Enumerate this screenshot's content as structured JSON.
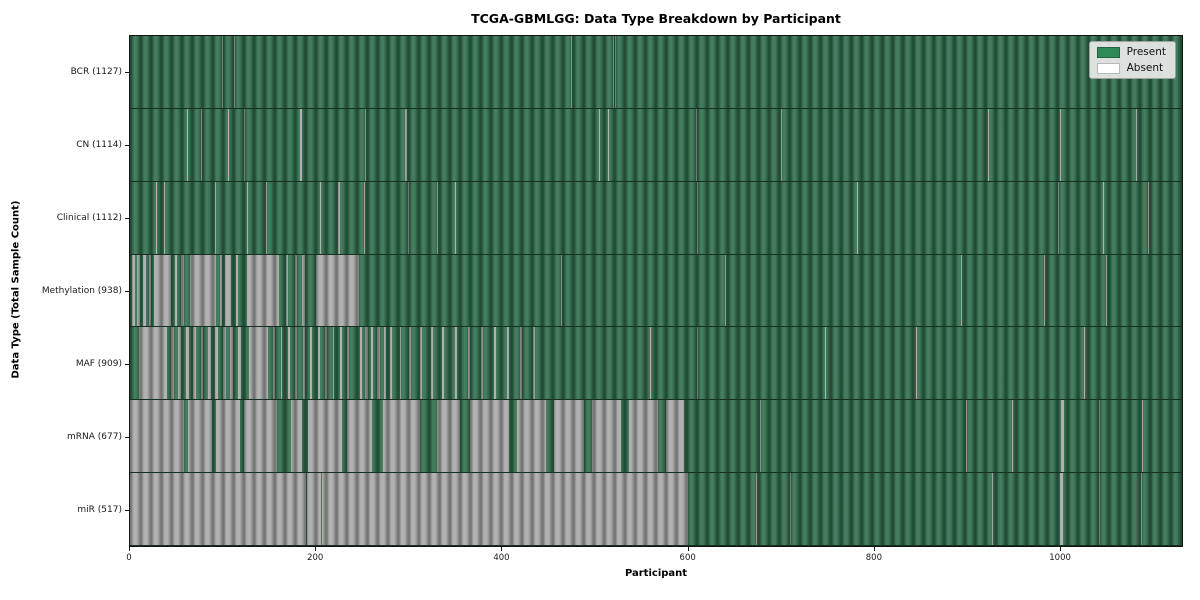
{
  "colors": {
    "present_bar": "#2f6c4b",
    "absent_bar": "#a8a8a8",
    "legend_present": "#2e8b57",
    "legend_absent": "#ffffff",
    "figure_background": "#ffffff"
  },
  "legend": {
    "items": [
      {
        "label": "Present",
        "color": "#2e8b57"
      },
      {
        "label": "Absent",
        "color": "#ffffff"
      }
    ]
  },
  "chart_data": {
    "type": "heatmap",
    "title": "TCGA-GBMLGG: Data Type Breakdown by Participant",
    "xlabel": "Participant",
    "ylabel": "Data Type (Total Sample Count)",
    "x_range": [
      0,
      1132
    ],
    "x_ticks": [
      0,
      200,
      400,
      600,
      800,
      1000
    ],
    "grid": false,
    "legend_position": "upper right",
    "value_encoding": {
      "present": "green bar",
      "absent": "white/gray bar"
    },
    "rows": [
      {
        "name": "BCR",
        "label": "BCR (1127)",
        "count": 1127,
        "absent_runs": [
          [
            99,
            100
          ],
          [
            112,
            113
          ],
          [
            474,
            475
          ],
          [
            520,
            521
          ],
          [
            522,
            523
          ]
        ]
      },
      {
        "name": "CN",
        "label": "CN (1114)",
        "count": 1114,
        "absent_runs": [
          [
            61,
            62
          ],
          [
            76,
            77
          ],
          [
            105,
            106
          ],
          [
            123,
            124
          ],
          [
            183,
            185
          ],
          [
            253,
            254
          ],
          [
            296,
            298
          ],
          [
            505,
            506
          ],
          [
            514,
            515
          ],
          [
            609,
            610
          ],
          [
            700,
            701
          ],
          [
            923,
            924
          ],
          [
            1001,
            1002
          ],
          [
            1083,
            1084
          ]
        ]
      },
      {
        "name": "Clinical",
        "label": "Clinical (1112)",
        "count": 1112,
        "absent_runs": [
          [
            28,
            29
          ],
          [
            37,
            38
          ],
          [
            92,
            93
          ],
          [
            126,
            127
          ],
          [
            146,
            147
          ],
          [
            204,
            205
          ],
          [
            224,
            226
          ],
          [
            252,
            253
          ],
          [
            299,
            300
          ],
          [
            330,
            331
          ],
          [
            350,
            351
          ],
          [
            610,
            611
          ],
          [
            782,
            783
          ],
          [
            999,
            1000
          ],
          [
            1047,
            1048
          ],
          [
            1095,
            1096
          ]
        ]
      },
      {
        "name": "Methylation",
        "label": "Methylation (938)",
        "count": 938,
        "absent_runs": [
          [
            2,
            5
          ],
          [
            8,
            11
          ],
          [
            14,
            17
          ],
          [
            20,
            23
          ],
          [
            26,
            44
          ],
          [
            48,
            51
          ],
          [
            55,
            58
          ],
          [
            65,
            93
          ],
          [
            97,
            99
          ],
          [
            102,
            109
          ],
          [
            114,
            116
          ],
          [
            126,
            160
          ],
          [
            168,
            170
          ],
          [
            178,
            180
          ],
          [
            185,
            188
          ],
          [
            200,
            246
          ],
          [
            464,
            465
          ],
          [
            640,
            641
          ],
          [
            894,
            895
          ],
          [
            983,
            984
          ],
          [
            1050,
            1051
          ]
        ]
      },
      {
        "name": "MAF",
        "label": "MAF (909)",
        "count": 909,
        "absent_runs": [
          [
            10,
            40
          ],
          [
            44,
            47
          ],
          [
            52,
            55
          ],
          [
            60,
            63
          ],
          [
            68,
            71
          ],
          [
            76,
            79
          ],
          [
            84,
            87
          ],
          [
            92,
            95
          ],
          [
            100,
            103
          ],
          [
            108,
            111
          ],
          [
            116,
            119
          ],
          [
            128,
            149
          ],
          [
            154,
            156
          ],
          [
            162,
            164
          ],
          [
            170,
            172
          ],
          [
            178,
            180
          ],
          [
            186,
            188
          ],
          [
            194,
            196
          ],
          [
            202,
            204
          ],
          [
            210,
            212
          ],
          [
            218,
            220
          ],
          [
            226,
            228
          ],
          [
            234,
            236
          ],
          [
            247,
            250
          ],
          [
            253,
            256
          ],
          [
            259,
            262
          ],
          [
            266,
            269
          ],
          [
            273,
            276
          ],
          [
            280,
            282
          ],
          [
            290,
            292
          ],
          [
            300,
            302
          ],
          [
            312,
            314
          ],
          [
            324,
            326
          ],
          [
            336,
            338
          ],
          [
            350,
            352
          ],
          [
            364,
            366
          ],
          [
            378,
            380
          ],
          [
            392,
            394
          ],
          [
            406,
            408
          ],
          [
            420,
            422
          ],
          [
            434,
            436
          ],
          [
            560,
            561
          ],
          [
            610,
            611
          ],
          [
            748,
            749
          ],
          [
            846,
            847
          ],
          [
            1027,
            1028
          ]
        ]
      },
      {
        "name": "mRNA",
        "label": "mRNA (677)",
        "count": 677,
        "absent_runs": [
          [
            0,
            58
          ],
          [
            62,
            88
          ],
          [
            93,
            118
          ],
          [
            123,
            158
          ],
          [
            173,
            185
          ],
          [
            191,
            228
          ],
          [
            234,
            260
          ],
          [
            272,
            312
          ],
          [
            330,
            355
          ],
          [
            366,
            408
          ],
          [
            416,
            448
          ],
          [
            456,
            488
          ],
          [
            497,
            528
          ],
          [
            537,
            568
          ],
          [
            577,
            596
          ],
          [
            678,
            679
          ],
          [
            900,
            901
          ],
          [
            949,
            950
          ],
          [
            1002,
            1005
          ],
          [
            1043,
            1044
          ],
          [
            1089,
            1090
          ]
        ]
      },
      {
        "name": "miR",
        "label": "miR (517)",
        "count": 517,
        "absent_runs": [
          [
            0,
            189
          ],
          [
            190,
            206
          ],
          [
            207,
            600
          ],
          [
            674,
            675
          ],
          [
            710,
            711
          ],
          [
            928,
            929
          ],
          [
            1001,
            1004
          ],
          [
            1043,
            1044
          ],
          [
            1088,
            1089
          ]
        ]
      }
    ]
  }
}
